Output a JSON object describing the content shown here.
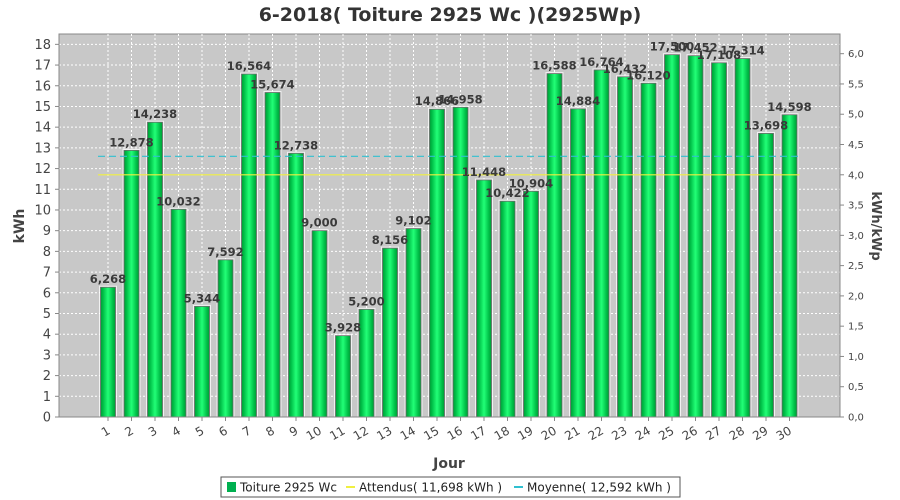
{
  "chart_data": {
    "type": "bar",
    "title": "6-2018( Toiture 2925 Wc )(2925Wp)",
    "xlabel": "Jour",
    "ylabel": "kWh",
    "y2label": "kWh/kWp",
    "ylim": [
      0,
      18.5
    ],
    "y2lim": [
      0,
      6.325
    ],
    "y_ticks": [
      0,
      1,
      2,
      3,
      4,
      5,
      6,
      7,
      8,
      9,
      10,
      11,
      12,
      13,
      14,
      15,
      16,
      17,
      18
    ],
    "y2_ticks": [
      "0,0",
      "0,5",
      "1,0",
      "1,5",
      "2,0",
      "2,5",
      "3,0",
      "3,5",
      "4,0",
      "4,5",
      "5,0",
      "5,5",
      "6,0"
    ],
    "categories": [
      "1",
      "2",
      "3",
      "4",
      "5",
      "6",
      "7",
      "8",
      "9",
      "10",
      "11",
      "12",
      "13",
      "14",
      "15",
      "16",
      "17",
      "18",
      "19",
      "20",
      "21",
      "22",
      "23",
      "24",
      "25",
      "26",
      "27",
      "28",
      "29",
      "30"
    ],
    "series": [
      {
        "name": "Toiture 2925 Wc",
        "values": [
          6.268,
          12.878,
          14.238,
          10.032,
          5.344,
          7.592,
          16.564,
          15.674,
          12.738,
          9.0,
          3.928,
          5.2,
          8.156,
          9.102,
          14.866,
          14.958,
          11.448,
          10.422,
          10.904,
          16.588,
          14.884,
          16.764,
          16.432,
          16.12,
          17.5,
          17.452,
          17.108,
          17.314,
          13.698,
          14.598
        ],
        "labels": [
          "6,268",
          "12,878",
          "14,238",
          "10,032",
          "5,344",
          "7,592",
          "16,564",
          "15,674",
          "12,738",
          "9,000",
          "3,928",
          "5,200",
          "8,156",
          "9,102",
          "14,866",
          "14,958",
          "11,448",
          "10,422",
          "10,904",
          "16,588",
          "14,884",
          "16,764",
          "16,432",
          "16,120",
          "17,500",
          "17,452",
          "17,108",
          "17,314",
          "13,698",
          "14,598"
        ],
        "color": "#00d050"
      }
    ],
    "lines": [
      {
        "name": "Attendus",
        "value": 11.698,
        "color": "#f0f040"
      },
      {
        "name": "Moyenne",
        "value": 12.592,
        "color": "#30c0d0"
      }
    ],
    "grid": true,
    "legend": {
      "position": "bottom",
      "items": [
        {
          "label": "Toiture 2925 Wc",
          "color": "#00b050"
        },
        {
          "label": "Attendus( 11,698 kWh )",
          "color": "#f0f040"
        },
        {
          "label": "Moyenne( 12,592 kWh )",
          "color": "#30c0d0"
        }
      ]
    },
    "colors": {
      "plot_bg": "#c8c8c8",
      "grid": "#ffffff"
    }
  }
}
